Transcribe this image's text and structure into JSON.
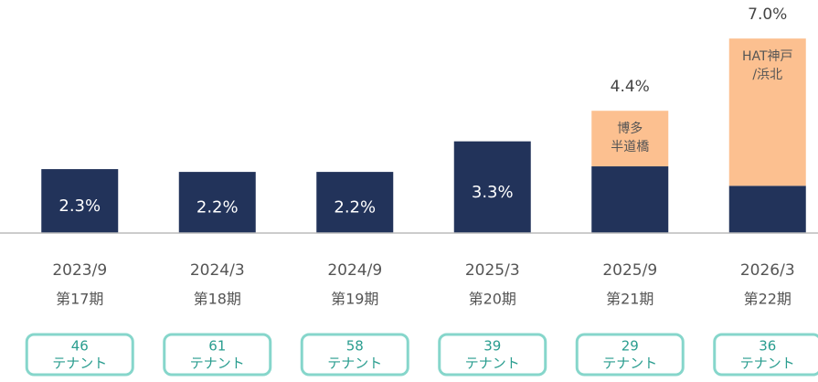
{
  "chart_data": {
    "type": "stacked_bar",
    "categories": [
      "2023/9",
      "2024/3",
      "2024/9",
      "2025/3",
      "2025/9",
      "2026/3"
    ],
    "periods": [
      "第17期",
      "第18期",
      "第19期",
      "第20期",
      "第21期",
      "第22期"
    ],
    "ylim": [
      0,
      7.4
    ],
    "series": [
      {
        "color": "#22335a",
        "values": [
          2.3,
          2.2,
          2.2,
          3.3,
          2.4,
          1.7
        ],
        "value_labels": [
          "2.3%",
          "2.2%",
          "2.2%",
          "3.3%",
          null,
          null
        ]
      },
      {
        "color": "#fcc090",
        "values": [
          null,
          null,
          null,
          null,
          2.0,
          5.3
        ],
        "segment_labels": [
          null,
          null,
          null,
          null,
          [
            "博多",
            "半道橋"
          ],
          [
            "HAT神戸",
            "/浜北"
          ]
        ]
      }
    ],
    "totals": [
      null,
      null,
      null,
      null,
      4.4,
      7.0
    ],
    "total_labels": [
      null,
      null,
      null,
      null,
      "4.4%",
      "7.0%"
    ],
    "tenants": {
      "values": [
        46,
        61,
        58,
        39,
        29,
        36
      ],
      "unit": "テナント",
      "color": "#2a9d8f",
      "border": "#86d6cb"
    }
  }
}
